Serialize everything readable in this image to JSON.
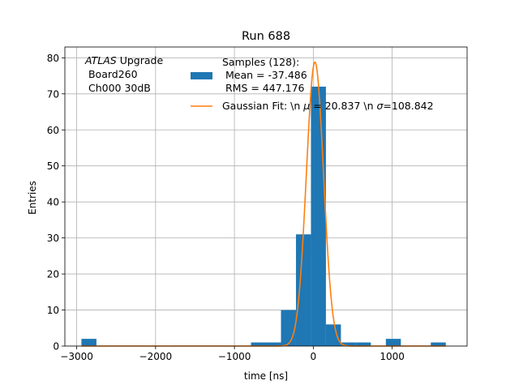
{
  "chart_data": {
    "type": "bar",
    "title": "Run 688",
    "xlabel": "time [ns]",
    "ylabel": "Entries",
    "xlim": [
      -3150,
      1950
    ],
    "ylim": [
      0,
      83
    ],
    "grid": true,
    "x_ticks": [
      -3000,
      -2000,
      -1000,
      0,
      1000
    ],
    "x_tick_labels": [
      "−3000",
      "−2000",
      "−1000",
      "0",
      "1000"
    ],
    "y_ticks": [
      0,
      10,
      20,
      30,
      40,
      50,
      60,
      70,
      80
    ],
    "y_tick_labels": [
      "0",
      "10",
      "20",
      "30",
      "40",
      "50",
      "60",
      "70",
      "80"
    ],
    "annotation": {
      "italic": "ATLAS",
      "rest": " Upgrade",
      "line2": " Board260",
      "line3": " Ch000 30dB"
    },
    "histogram": {
      "bin_width": 190,
      "bins": [
        {
          "x0": -2940,
          "x1": -2750,
          "count": 2
        },
        {
          "x0": -790,
          "x1": -600,
          "count": 1
        },
        {
          "x0": -600,
          "x1": -410,
          "count": 1
        },
        {
          "x0": -410,
          "x1": -220,
          "count": 10
        },
        {
          "x0": -220,
          "x1": -30,
          "count": 31
        },
        {
          "x0": -30,
          "x1": 160,
          "count": 72
        },
        {
          "x0": 160,
          "x1": 350,
          "count": 6
        },
        {
          "x0": 350,
          "x1": 540,
          "count": 1
        },
        {
          "x0": 540,
          "x1": 730,
          "count": 1
        },
        {
          "x0": 920,
          "x1": 1110,
          "count": 2
        },
        {
          "x0": 1490,
          "x1": 1680,
          "count": 1
        }
      ],
      "color": "#1f77b4"
    },
    "gaussian_fit": {
      "mu": 20.837,
      "sigma": 108.842,
      "amplitude": 78.8,
      "x_range": [
        -2940,
        1680
      ],
      "color": "#ff7f0e"
    },
    "legend": {
      "placement": "upper center",
      "entries": [
        {
          "kind": "patch",
          "color": "#1f77b4",
          "lines": [
            "Samples (128):",
            " Mean = -37.486",
            " RMS = 447.176"
          ]
        },
        {
          "kind": "line",
          "color": "#ff7f0e",
          "prefix": "Gaussian Fit: \\n ",
          "mu_symbol": "μ",
          "mid": " = 20.837 \\n ",
          "sigma_symbol": "σ",
          "suffix": "=108.842"
        }
      ]
    }
  }
}
